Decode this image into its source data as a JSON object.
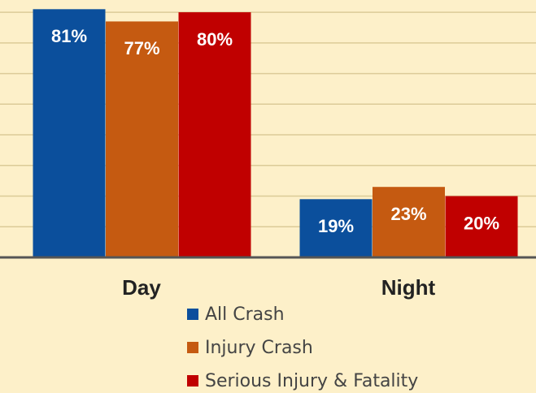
{
  "chart_data": {
    "type": "bar",
    "categories": [
      "Day",
      "Night"
    ],
    "series": [
      {
        "name": "All Crash",
        "color": "#0b4f9c",
        "values": [
          81,
          19
        ],
        "value_labels": [
          "81%",
          "19%"
        ]
      },
      {
        "name": "Injury Crash",
        "color": "#c55a11",
        "values": [
          77,
          23
        ],
        "value_labels": [
          "77%",
          "23%"
        ]
      },
      {
        "name": "Serious Injury & Fatality",
        "color": "#c00000",
        "values": [
          80,
          20
        ],
        "value_labels": [
          "80%",
          "20%"
        ]
      }
    ],
    "ylim": [
      0,
      84
    ],
    "yticks": [
      0,
      10,
      20,
      30,
      40,
      50,
      60,
      70,
      80
    ],
    "grid": true
  }
}
